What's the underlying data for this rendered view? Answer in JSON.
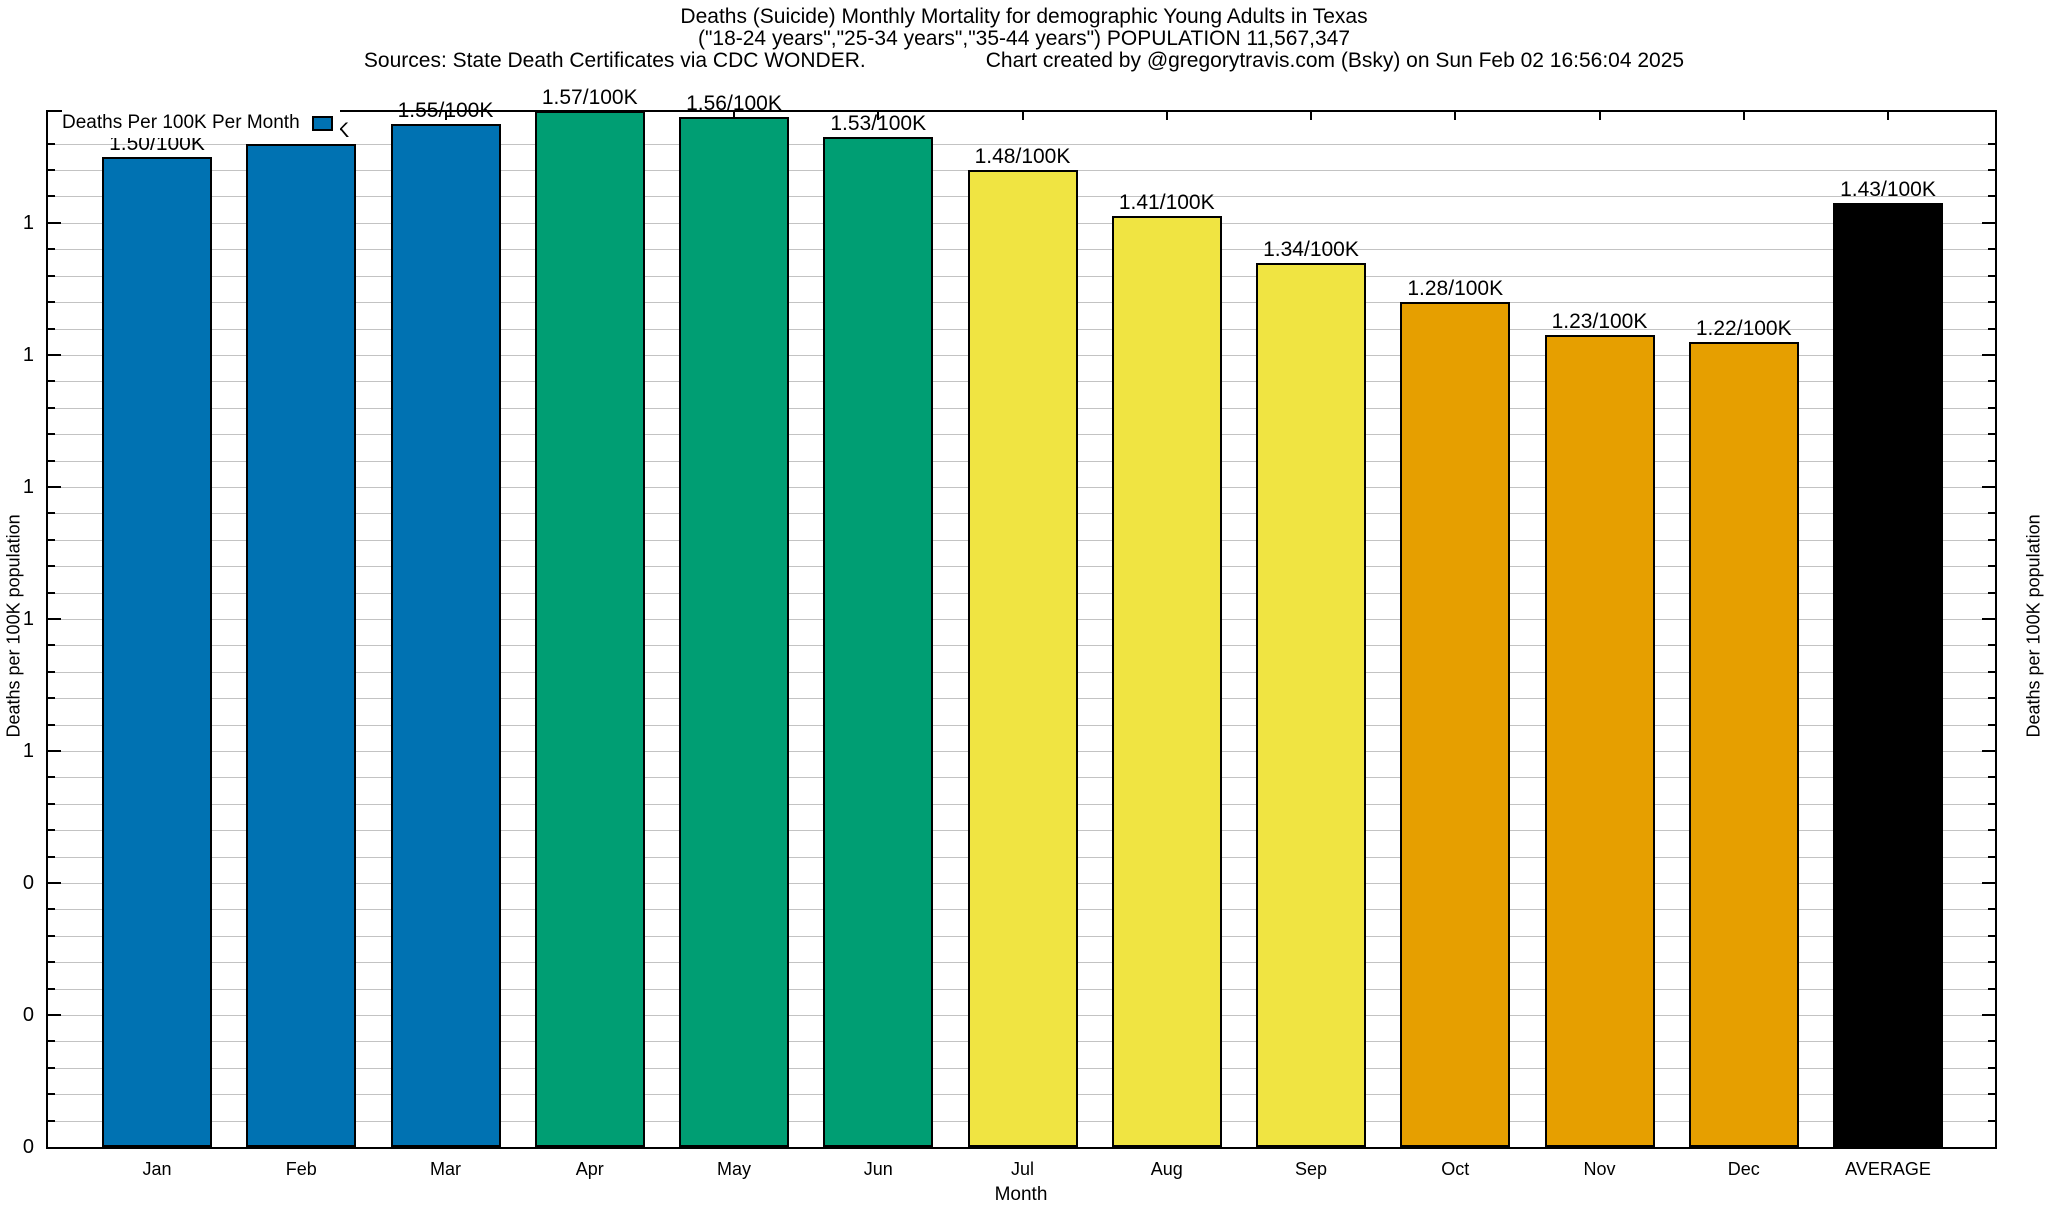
{
  "header": {
    "title_line1": "Deaths (Suicide) Monthly Mortality for demographic Young Adults in Texas",
    "title_line2": "(\"18-24 years\",\"25-34 years\",\"35-44 years\") POPULATION 11,567,347",
    "sources": "Sources: State Death Certificates via CDC WONDER.",
    "credit": "Chart created by @gregorytravis.com (Bsky) on Sun Feb 02 16:56:04 2025"
  },
  "legend": {
    "label": "Deaths Per 100K Per Month",
    "swatch_color": "#0072B2"
  },
  "chart_data": {
    "type": "bar",
    "title": "Deaths (Suicide) Monthly Mortality for demographic Young Adults in Texas",
    "categories": [
      "Jan",
      "Feb",
      "Mar",
      "Apr",
      "May",
      "Jun",
      "Jul",
      "Aug",
      "Sep",
      "Oct",
      "Nov",
      "Dec",
      "AVERAGE"
    ],
    "values": [
      1.5,
      1.52,
      1.55,
      1.57,
      1.56,
      1.53,
      1.48,
      1.41,
      1.34,
      1.28,
      1.23,
      1.22,
      1.43
    ],
    "bar_labels": [
      "1.50/100K",
      "1.52/100K",
      "1.55/100K",
      "1.57/100K",
      "1.56/100K",
      "1.53/100K",
      "1.48/100K",
      "1.41/100K",
      "1.34/100K",
      "1.28/100K",
      "1.23/100K",
      "1.22/100K",
      "1.43/100K"
    ],
    "colors": [
      "#0072B2",
      "#0072B2",
      "#0072B2",
      "#009E73",
      "#009E73",
      "#009E73",
      "#F0E442",
      "#F0E442",
      "#F0E442",
      "#E69F00",
      "#E69F00",
      "#E69F00",
      "#000000"
    ],
    "xlabel": "Month",
    "ylabel_left": "Deaths per 100K population",
    "ylabel_right": "Deaths per 100K population",
    "ylim": [
      0,
      1.568
    ],
    "ytick_major_step": 0.2,
    "ytick_minor_step": 0.04,
    "ytick_labels": [
      {
        "value": 1.4,
        "label": "1"
      },
      {
        "value": 1.2,
        "label": "1"
      },
      {
        "value": 1.0,
        "label": "1"
      },
      {
        "value": 0.8,
        "label": "1"
      },
      {
        "value": 0.6,
        "label": "1"
      },
      {
        "value": 0.4,
        "label": "0"
      },
      {
        "value": 0.2,
        "label": "0"
      },
      {
        "value": 0.0,
        "label": "0"
      }
    ],
    "grid": true,
    "legend_position": "top-left"
  }
}
